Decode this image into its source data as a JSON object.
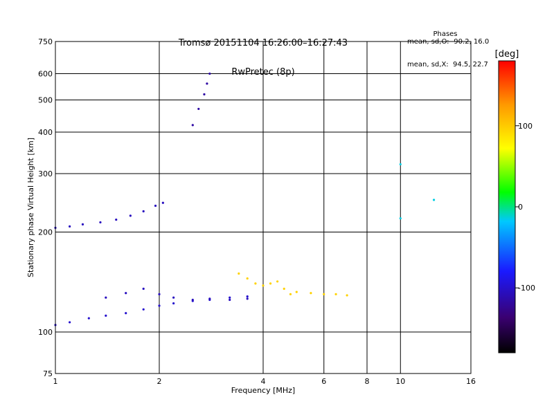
{
  "header": {
    "title_line1": "Tromsø 20151104 16:26:00–16:27:43",
    "title_line2": "RwPretec (8p)"
  },
  "stats": {
    "heading": "Phases",
    "line_o": "mean, sd,O: -90.2, 16.0",
    "line_x": "mean, sd,X:  94.5, 22.7"
  },
  "chart_data": {
    "type": "scatter",
    "title": "Tromsø 20151104 16:26:00–16:27:43",
    "subtitle": "RwPretec (8p)",
    "xlabel": "Frequency [MHz]",
    "ylabel": "Stationary phase Virtual Height [km]",
    "x_scale": "log",
    "y_scale": "log",
    "xlim": [
      1,
      16
    ],
    "ylim": [
      75,
      750
    ],
    "x_ticks": [
      1,
      2,
      4,
      6,
      8,
      10,
      16
    ],
    "y_ticks": [
      75,
      100,
      200,
      300,
      400,
      500,
      600,
      750
    ],
    "grid": true,
    "colorbar": {
      "label": "[deg]",
      "range": [
        -180,
        180
      ],
      "ticks": [
        100,
        0,
        -100
      ],
      "colors": [
        "#000000",
        "#3a0070",
        "#1a1aff",
        "#00c8ff",
        "#00ff00",
        "#ffff00",
        "#ff9900",
        "#ff0000"
      ]
    },
    "series": [
      {
        "x": [
          1.0,
          1.1,
          1.2,
          1.35,
          1.5,
          1.65,
          1.8,
          1.95,
          2.05
        ],
        "y": [
          206,
          208,
          211,
          214,
          218,
          224,
          231,
          240,
          245
        ],
        "phase": -100
      },
      {
        "x": [
          1.0,
          1.1,
          1.25,
          1.4,
          1.6,
          1.8,
          2.0,
          2.2,
          2.5,
          2.8,
          3.2,
          3.6
        ],
        "y": [
          105,
          107,
          110,
          112,
          114,
          117,
          120,
          122,
          124,
          125,
          127,
          128
        ],
        "phase": -95
      },
      {
        "x": [
          1.4,
          1.6,
          1.8,
          2.0,
          2.2,
          2.5,
          2.8,
          3.2,
          3.6
        ],
        "y": [
          127,
          131,
          135,
          130,
          127,
          125,
          126,
          125,
          126
        ],
        "phase": -100
      },
      {
        "x": [
          2.5,
          2.6,
          2.7,
          2.75,
          2.8
        ],
        "y": [
          420,
          470,
          520,
          560,
          600
        ],
        "phase": -110
      },
      {
        "x": [
          3.4,
          3.6,
          3.8,
          4.0,
          4.2,
          4.4,
          4.6,
          4.8,
          5.0,
          5.5,
          6.0,
          6.5,
          7.0
        ],
        "y": [
          150,
          145,
          140,
          138,
          140,
          142,
          135,
          130,
          132,
          131,
          130,
          130,
          129
        ],
        "phase": 100
      },
      {
        "x": [
          10.0,
          12.5,
          10.0
        ],
        "y": [
          220,
          250,
          320
        ],
        "phase": -20
      }
    ]
  }
}
